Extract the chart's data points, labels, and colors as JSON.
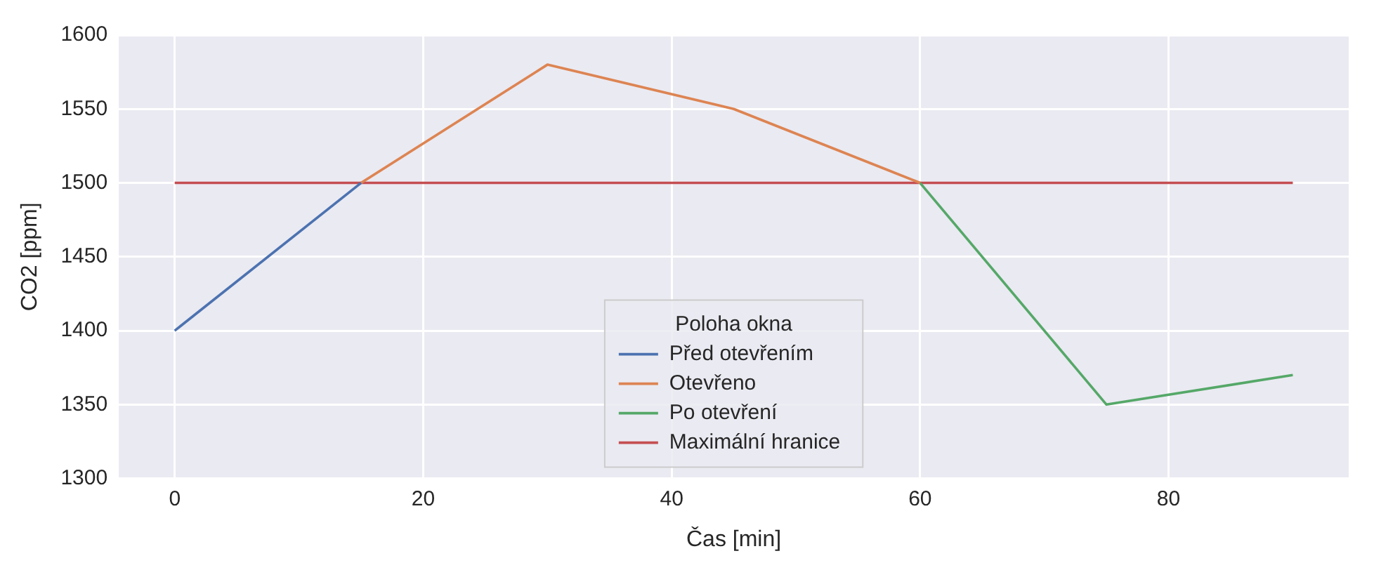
{
  "chart_data": {
    "type": "line",
    "xlabel": "Čas [min]",
    "ylabel": "CO2 [ppm]",
    "legend_title": "Poloha okna",
    "series": [
      {
        "name": "Před otevřením",
        "color": "#4c72b0",
        "x": [
          0,
          15
        ],
        "values": [
          1400,
          1500
        ]
      },
      {
        "name": "Otevřeno",
        "color": "#dd8452",
        "x": [
          15,
          30,
          45,
          60
        ],
        "values": [
          1500,
          1580,
          1550,
          1500
        ]
      },
      {
        "name": "Po otevření",
        "color": "#55a868",
        "x": [
          60,
          75,
          90
        ],
        "values": [
          1500,
          1350,
          1370
        ]
      },
      {
        "name": "Maximální hranice",
        "color": "#c44e52",
        "x": [
          0,
          90
        ],
        "values": [
          1500,
          1500
        ]
      }
    ],
    "xlim": [
      -4.5,
      94.5
    ],
    "xticks": [
      0,
      20,
      40,
      60,
      80
    ],
    "ylim": [
      1300,
      1600
    ],
    "yticks": [
      1300,
      1350,
      1400,
      1450,
      1500,
      1550,
      1600
    ],
    "grid": true,
    "legend": "bottom"
  }
}
